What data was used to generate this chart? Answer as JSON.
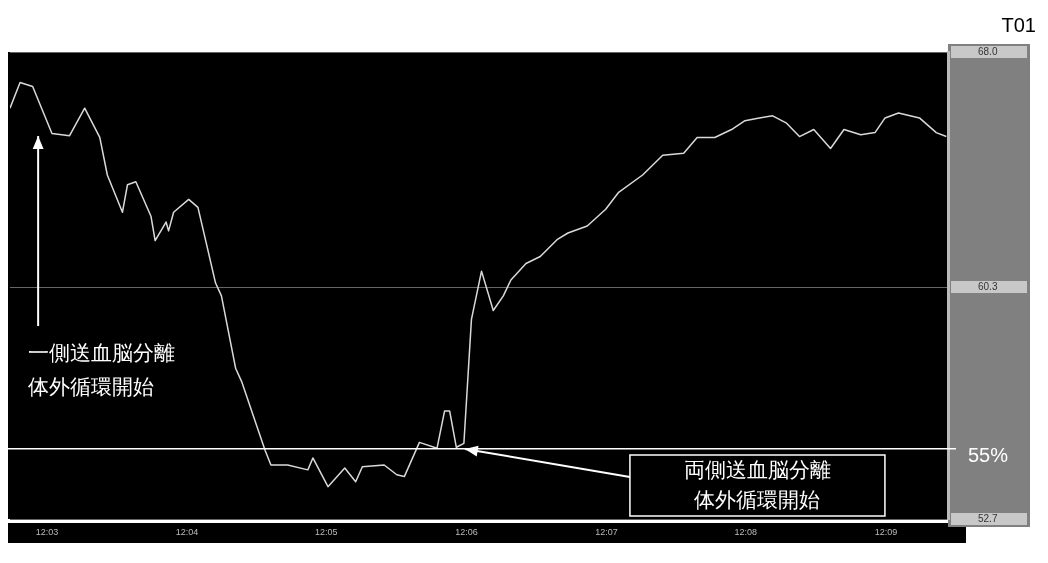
{
  "chart_data": {
    "type": "line",
    "title": "T01",
    "x": [
      12.0456,
      12.0468,
      12.0483,
      12.0506,
      12.0527,
      12.0545,
      12.0563,
      12.0572,
      12.059,
      12.0596,
      12.0606,
      12.0624,
      12.0629,
      12.0642,
      12.0645,
      12.0651,
      12.0669,
      12.068,
      12.0701,
      12.0708,
      12.0725,
      12.0732,
      12.0748,
      12.076,
      12.0767,
      12.0787,
      12.0811,
      12.0817,
      12.0835,
      12.0855,
      12.0868,
      12.0876,
      12.0902,
      12.0917,
      12.0926,
      12.0944,
      12.0965,
      12.0974,
      12.098,
      12.0988,
      12.0997,
      12.1006,
      12.1018,
      12.1032,
      12.1044,
      12.1053,
      12.1071,
      12.1088,
      12.1108,
      12.1121,
      12.1144,
      12.1166,
      12.1181,
      12.121,
      12.1234,
      12.1259,
      12.1275,
      12.1296,
      12.1316,
      12.1332,
      12.1349,
      12.1365,
      12.1381,
      12.1397,
      12.1414,
      12.1434,
      12.145,
      12.147,
      12.1487,
      12.1499,
      12.1515,
      12.154,
      12.156,
      12.1572
    ],
    "series": [
      {
        "color": "#d9d9d9",
        "values": [
          66.16,
          67.0,
          66.87,
          65.33,
          65.26,
          66.16,
          65.2,
          63.97,
          62.75,
          63.65,
          63.75,
          62.62,
          61.82,
          62.43,
          62.14,
          62.75,
          63.17,
          62.91,
          60.43,
          60.01,
          57.63,
          57.21,
          55.92,
          54.95,
          54.47,
          54.47,
          54.31,
          54.7,
          53.76,
          54.37,
          53.92,
          54.41,
          54.47,
          54.15,
          54.09,
          55.21,
          55.02,
          56.24,
          56.24,
          55.05,
          55.18,
          59.24,
          60.82,
          59.53,
          60.01,
          60.53,
          61.07,
          61.3,
          61.85,
          62.07,
          62.3,
          62.85,
          63.39,
          63.97,
          64.62,
          64.68,
          65.2,
          65.2,
          65.46,
          65.75,
          65.84,
          65.91,
          65.68,
          65.23,
          65.46,
          64.84,
          65.46,
          65.29,
          65.36,
          65.84,
          66.0,
          65.84,
          65.36,
          65.23
        ]
      }
    ],
    "xlim": [
      12.0456,
      12.1574
    ],
    "xticks": [
      {
        "value": 12.05,
        "label": "12:03"
      },
      {
        "value": 12.0667,
        "label": "12:04"
      },
      {
        "value": 12.0833,
        "label": "12:05"
      },
      {
        "value": 12.1,
        "label": "12:06"
      },
      {
        "value": 12.1167,
        "label": "12:07"
      },
      {
        "value": 12.1333,
        "label": "12:08"
      },
      {
        "value": 12.15,
        "label": "12:09"
      }
    ],
    "ylim": [
      52.7,
      68.0
    ],
    "yticks": [
      52.7,
      60.3,
      {
        "value": 68,
        "label": "68.0"
      }
    ],
    "grid": "y",
    "ref_lines": [
      {
        "axis": "y",
        "value": 55,
        "label": "55%",
        "color": "#ffffff"
      }
    ],
    "annotations": [
      "一側送血脳分離体外循環開始",
      "両側送血脳分離体外循環開始"
    ],
    "line_style": "solid",
    "marker": "none"
  }
}
